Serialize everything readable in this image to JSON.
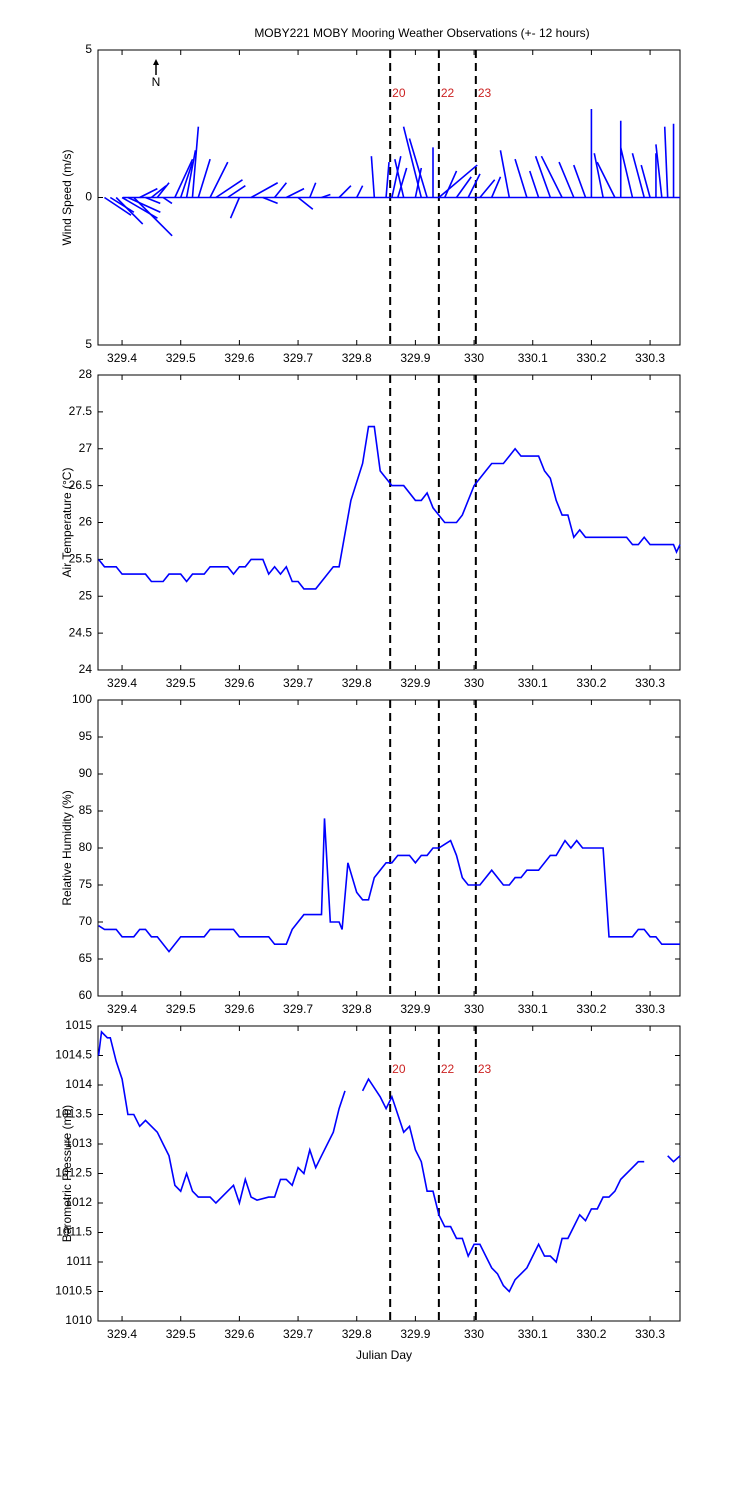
{
  "chart_data": [
    {
      "type": "stick",
      "title": "MOBY221 MOBY Mooring Weather Observations (+- 12 hours)",
      "ylabel": "Wind Speed (m/s)",
      "xlabel": "Julian Day",
      "north_label": "N",
      "color": "#0000ff",
      "xlim": [
        329.359,
        330.351
      ],
      "xticks": [
        329.4,
        329.5,
        329.6,
        329.7,
        329.8,
        329.9,
        330,
        330.1,
        330.2,
        330.3
      ],
      "ylim": [
        -5,
        5
      ],
      "yticks": [
        {
          "value": -5,
          "label": "5"
        },
        0,
        {
          "value": 5,
          "label": "5"
        }
      ],
      "markers": [
        {
          "x": 329.857,
          "label": "20"
        },
        {
          "x": 329.94,
          "label": "22"
        },
        {
          "x": 330.003,
          "label": "23"
        }
      ],
      "x": [
        329.37,
        329.38,
        329.39,
        329.4,
        329.41,
        329.42,
        329.43,
        329.44,
        329.45,
        329.46,
        329.47,
        329.49,
        329.5,
        329.51,
        329.52,
        329.53,
        329.55,
        329.56,
        329.58,
        329.6,
        329.62,
        329.64,
        329.66,
        329.68,
        329.7,
        329.72,
        329.74,
        329.77,
        329.8,
        329.83,
        329.85,
        329.86,
        329.87,
        329.88,
        329.9,
        329.91,
        329.92,
        329.93,
        329.94,
        329.95,
        329.97,
        329.99,
        330.01,
        330.03,
        330.06,
        330.09,
        330.11,
        330.13,
        330.15,
        330.17,
        330.19,
        330.2,
        330.22,
        330.24,
        330.25,
        330.27,
        330.29,
        330.3,
        330.31,
        330.32,
        330.33,
        330.34
      ],
      "u": [
        0.9,
        0.8,
        0.9,
        1.2,
        1.1,
        1.3,
        0.6,
        0.5,
        0.5,
        0.4,
        0.3,
        0.6,
        0.4,
        0.3,
        0.2,
        0.4,
        0.6,
        0.9,
        0.6,
        -0.3,
        0.9,
        0.5,
        0.4,
        0.6,
        0.5,
        0.2,
        0.3,
        0.4,
        0.2,
        -0.1,
        0.1,
        0.3,
        0.3,
        -0.3,
        0.2,
        -0.6,
        -0.6,
        0.0,
        1.3,
        0.4,
        0.5,
        0.4,
        0.5,
        0.3,
        -0.3,
        -0.4,
        -0.3,
        -0.5,
        -0.7,
        -0.5,
        -0.4,
        0.0,
        -0.3,
        -0.6,
        0.0,
        -0.4,
        -0.4,
        -0.3,
        0.0,
        -0.2,
        -0.1,
        0.0
      ],
      "v": [
        -0.6,
        -0.5,
        -0.9,
        -0.7,
        -0.5,
        -1.3,
        0.3,
        -0.2,
        0.4,
        0.5,
        -0.2,
        1.3,
        1.2,
        1.6,
        2.4,
        1.3,
        1.2,
        0.6,
        0.4,
        -0.7,
        0.5,
        -0.2,
        0.5,
        0.3,
        -0.4,
        0.5,
        0.1,
        0.4,
        0.4,
        1.4,
        1.2,
        1.4,
        1.0,
        1.3,
        1.0,
        2.4,
        2.0,
        1.7,
        1.1,
        0.9,
        0.7,
        0.8,
        0.6,
        0.7,
        1.6,
        1.3,
        0.9,
        1.4,
        1.4,
        1.2,
        1.1,
        3.0,
        1.5,
        1.2,
        2.6,
        1.7,
        1.5,
        1.1,
        1.5,
        1.8,
        2.4,
        2.5
      ]
    },
    {
      "type": "line",
      "ylabel": "Air Temperature (°C)",
      "color": "#0000ff",
      "xlim": [
        329.359,
        330.351
      ],
      "xticks": [
        329.4,
        329.5,
        329.6,
        329.7,
        329.8,
        329.9,
        330,
        330.1,
        330.2,
        330.3
      ],
      "ylim": [
        24,
        28
      ],
      "yticks": [
        24,
        24.5,
        25,
        25.5,
        26,
        26.5,
        27,
        27.5,
        28
      ],
      "markers": [
        {
          "x": 329.857
        },
        {
          "x": 329.94
        },
        {
          "x": 330.003
        }
      ],
      "x": [
        329.36,
        329.37,
        329.39,
        329.4,
        329.44,
        329.45,
        329.47,
        329.48,
        329.5,
        329.51,
        329.52,
        329.54,
        329.55,
        329.58,
        329.59,
        329.6,
        329.61,
        329.62,
        329.64,
        329.65,
        329.66,
        329.67,
        329.68,
        329.69,
        329.7,
        329.71,
        329.73,
        329.76,
        329.77,
        329.79,
        329.81,
        329.82,
        329.83,
        329.84,
        329.86,
        329.88,
        329.9,
        329.91,
        329.92,
        329.93,
        329.95,
        329.97,
        329.98,
        330.0,
        330.02,
        330.03,
        330.05,
        330.06,
        330.07,
        330.08,
        330.11,
        330.12,
        330.13,
        330.14,
        330.15,
        330.16,
        330.17,
        330.18,
        330.19,
        330.26,
        330.27,
        330.28,
        330.29,
        330.3,
        330.34,
        330.345,
        330.351
      ],
      "values": [
        25.5,
        25.4,
        25.4,
        25.3,
        25.3,
        25.2,
        25.2,
        25.3,
        25.3,
        25.2,
        25.3,
        25.3,
        25.4,
        25.4,
        25.3,
        25.4,
        25.4,
        25.5,
        25.5,
        25.3,
        25.4,
        25.3,
        25.4,
        25.2,
        25.2,
        25.1,
        25.1,
        25.4,
        25.4,
        26.3,
        26.8,
        27.3,
        27.3,
        26.7,
        26.5,
        26.5,
        26.3,
        26.3,
        26.4,
        26.2,
        26.0,
        26.0,
        26.1,
        26.5,
        26.7,
        26.8,
        26.8,
        26.9,
        27.0,
        26.9,
        26.9,
        26.7,
        26.6,
        26.3,
        26.1,
        26.1,
        25.8,
        25.9,
        25.8,
        25.8,
        25.7,
        25.7,
        25.8,
        25.7,
        25.7,
        25.6,
        25.7
      ]
    },
    {
      "type": "line",
      "ylabel": "Relative Humidity (%)",
      "color": "#0000ff",
      "xlim": [
        329.359,
        330.351
      ],
      "xticks": [
        329.4,
        329.5,
        329.6,
        329.7,
        329.8,
        329.9,
        330,
        330.1,
        330.2,
        330.3
      ],
      "ylim": [
        60,
        100
      ],
      "yticks": [
        60,
        65,
        70,
        75,
        80,
        85,
        90,
        95,
        100
      ],
      "markers": [
        {
          "x": 329.857
        },
        {
          "x": 329.94
        },
        {
          "x": 330.003
        }
      ],
      "x": [
        329.36,
        329.37,
        329.39,
        329.4,
        329.42,
        329.43,
        329.44,
        329.45,
        329.46,
        329.48,
        329.5,
        329.54,
        329.55,
        329.59,
        329.6,
        329.65,
        329.66,
        329.68,
        329.69,
        329.71,
        329.74,
        329.745,
        329.755,
        329.77,
        329.775,
        329.785,
        329.8,
        329.81,
        329.82,
        329.83,
        329.85,
        329.86,
        329.87,
        329.89,
        329.9,
        329.91,
        329.92,
        329.93,
        329.94,
        329.95,
        329.96,
        329.97,
        329.98,
        329.99,
        330.01,
        330.03,
        330.05,
        330.06,
        330.07,
        330.08,
        330.09,
        330.11,
        330.13,
        330.14,
        330.155,
        330.165,
        330.175,
        330.185,
        330.22,
        330.23,
        330.27,
        330.28,
        330.29,
        330.3,
        330.31,
        330.32,
        330.351
      ],
      "values": [
        69.5,
        69,
        69,
        68,
        68,
        69,
        69,
        68,
        68,
        66,
        68,
        68,
        69,
        69,
        68,
        68,
        67,
        67,
        69,
        71,
        71,
        84,
        70,
        70,
        69,
        78,
        74,
        73,
        73,
        76,
        78,
        78,
        79,
        79,
        78,
        79,
        79,
        80,
        80,
        80.5,
        81,
        79,
        76,
        75,
        75,
        77,
        75,
        75,
        76,
        76,
        77,
        77,
        79,
        79,
        81,
        80,
        81,
        80,
        80,
        68,
        68,
        69,
        69,
        68,
        68,
        67,
        67
      ]
    },
    {
      "type": "line",
      "ylabel": "Barometric Pressure (mb)",
      "xlabel": "Julian Day",
      "color": "#0000ff",
      "xlim": [
        329.359,
        330.351
      ],
      "xticks": [
        329.4,
        329.5,
        329.6,
        329.7,
        329.8,
        329.9,
        330,
        330.1,
        330.2,
        330.3
      ],
      "ylim": [
        1010,
        1015
      ],
      "yticks": [
        1010,
        1010.5,
        1011,
        1011.5,
        1012,
        1012.5,
        1013,
        1013.5,
        1014,
        1014.5,
        1015
      ],
      "markers": [
        {
          "x": 329.857,
          "label": "20"
        },
        {
          "x": 329.94,
          "label": "22"
        },
        {
          "x": 330.003,
          "label": "23"
        }
      ],
      "x": [
        329.36,
        329.365,
        329.375,
        329.38,
        329.39,
        329.4,
        329.41,
        329.42,
        329.43,
        329.44,
        329.45,
        329.46,
        329.47,
        329.48,
        329.49,
        329.5,
        329.51,
        329.52,
        329.53,
        329.55,
        329.56,
        329.59,
        329.6,
        329.61,
        329.62,
        329.63,
        329.65,
        329.66,
        329.67,
        329.68,
        329.69,
        329.7,
        329.71,
        329.72,
        329.73,
        329.74,
        329.76,
        329.77,
        329.78,
        329.79,
        329.81,
        329.82,
        329.84,
        329.85,
        329.86,
        329.87,
        329.88,
        329.89,
        329.9,
        329.91,
        329.92,
        329.93,
        329.94,
        329.95,
        329.96,
        329.97,
        329.98,
        329.99,
        330.0,
        330.01,
        330.02,
        330.03,
        330.04,
        330.05,
        330.06,
        330.07,
        330.08,
        330.09,
        330.1,
        330.11,
        330.12,
        330.13,
        330.14,
        330.15,
        330.16,
        330.17,
        330.18,
        330.19,
        330.2,
        330.21,
        330.22,
        330.23,
        330.24,
        330.25,
        330.27,
        330.28,
        330.29,
        330.3,
        330.33,
        330.34,
        330.351
      ],
      "values": [
        1014.5,
        1014.9,
        1014.8,
        1014.8,
        1014.4,
        1014.1,
        1013.5,
        1013.5,
        1013.3,
        1013.4,
        1013.3,
        1013.2,
        1013.0,
        1012.8,
        1012.3,
        1012.2,
        1012.5,
        1012.2,
        1012.1,
        1012.1,
        1012.0,
        1012.3,
        1012.0,
        1012.4,
        1012.1,
        1012.05,
        1012.1,
        1012.1,
        1012.4,
        1012.4,
        1012.3,
        1012.6,
        1012.5,
        1012.9,
        1012.6,
        1012.8,
        1013.2,
        1013.6,
        1013.9,
        null,
        1013.9,
        1014.1,
        1013.8,
        1013.6,
        1013.8,
        1013.5,
        1013.2,
        1013.3,
        1012.9,
        1012.7,
        1012.2,
        1012.2,
        1011.8,
        1011.6,
        1011.6,
        1011.4,
        1011.4,
        1011.1,
        1011.3,
        1011.3,
        1011.1,
        1010.9,
        1010.8,
        1010.6,
        1010.5,
        1010.7,
        1010.8,
        1010.9,
        1011.1,
        1011.3,
        1011.1,
        1011.1,
        1011.0,
        1011.4,
        1011.4,
        1011.6,
        1011.8,
        1011.7,
        1011.9,
        1011.9,
        1012.1,
        1012.1,
        1012.2,
        1012.4,
        1012.6,
        1012.7,
        1012.7,
        null,
        1012.8,
        1012.7,
        1012.8
      ]
    }
  ]
}
